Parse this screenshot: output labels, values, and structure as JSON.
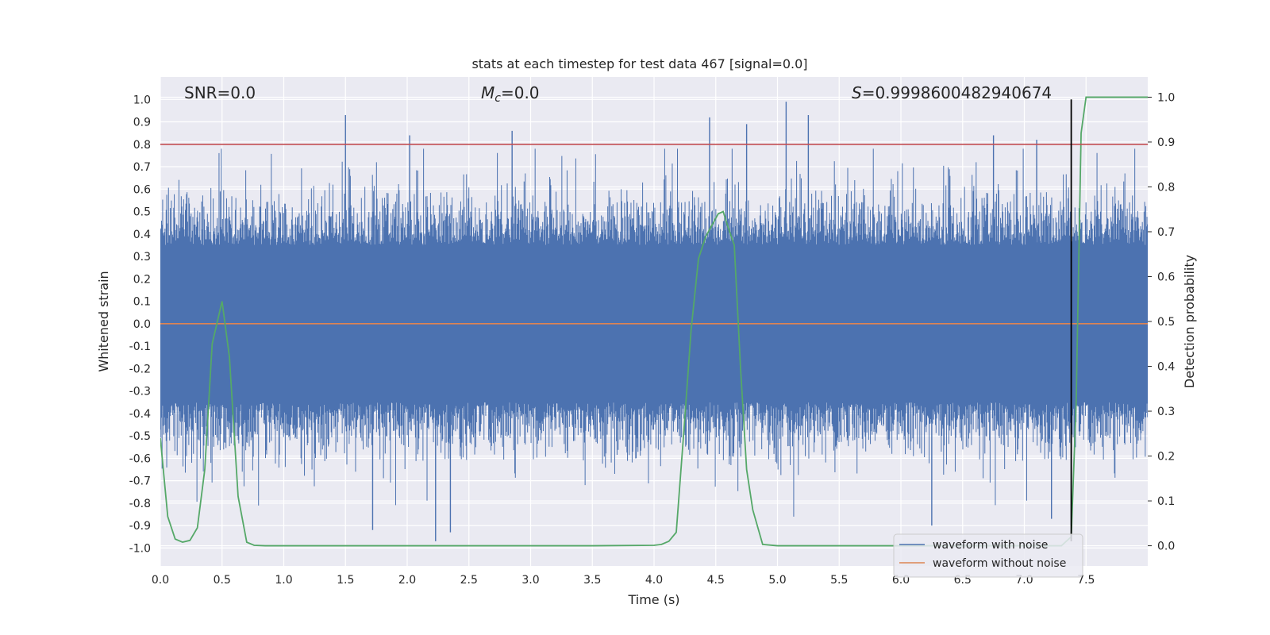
{
  "chart_data": {
    "type": "line",
    "title": "stats at each timestep for test data 467 [signal=0.0]",
    "xlabel": "Time (s)",
    "ylabel_left": "Whitened strain",
    "ylabel_right": "Detection probability",
    "xlim": [
      0.0,
      8.0
    ],
    "ylim_left": [
      -1.08,
      1.1
    ],
    "ylim_right": [
      -0.045,
      1.045
    ],
    "x_ticks": [
      "0.0",
      "0.5",
      "1.0",
      "1.5",
      "2.0",
      "2.5",
      "3.0",
      "3.5",
      "4.0",
      "4.5",
      "5.0",
      "5.5",
      "6.0",
      "6.5",
      "7.0",
      "7.5"
    ],
    "y_ticks_left": [
      "1.0",
      "0.9",
      "0.8",
      "0.7",
      "0.6",
      "0.5",
      "0.4",
      "0.3",
      "0.2",
      "0.1",
      "0.0",
      "-0.1",
      "-0.2",
      "-0.3",
      "-0.4",
      "-0.5",
      "-0.6",
      "-0.7",
      "-0.8",
      "-0.9",
      "-1.0"
    ],
    "y_ticks_right": [
      "1.0",
      "0.9",
      "0.8",
      "0.7",
      "0.6",
      "0.5",
      "0.4",
      "0.3",
      "0.2",
      "0.1",
      "0.0"
    ],
    "grid": true,
    "colors": {
      "background": "#eaeaf2",
      "noise": "#4c72b0",
      "clean": "#dd8452",
      "probability": "#55a868",
      "threshold": "#c44e52",
      "marker": "#000000"
    },
    "annotations": {
      "snr_label": "SNR=0.0",
      "mc_symbol": "M",
      "mc_sub": "c",
      "mc_value": "=0.0",
      "s_symbol": "S",
      "s_value": "=0.9998600482940674"
    },
    "threshold_left_y": 0.8,
    "marker_line": {
      "x": 7.38,
      "y_from": -0.97,
      "y_to": 1.0
    },
    "series": [
      {
        "name": "waveform with noise",
        "kind": "noisy-strain",
        "upper_envelope_typical": 0.45,
        "lower_envelope_typical": -0.45,
        "peaks": [
          {
            "x": 1.5,
            "y": 0.93
          },
          {
            "x": 2.02,
            "y": 0.84
          },
          {
            "x": 2.85,
            "y": 0.86
          },
          {
            "x": 4.45,
            "y": 0.92
          },
          {
            "x": 4.75,
            "y": 0.89
          },
          {
            "x": 5.07,
            "y": 0.99
          },
          {
            "x": 5.25,
            "y": 0.93
          },
          {
            "x": 6.75,
            "y": 0.84
          },
          {
            "x": 7.1,
            "y": 0.82
          },
          {
            "x": 2.23,
            "y": -0.97
          },
          {
            "x": 2.35,
            "y": -0.93
          },
          {
            "x": 1.72,
            "y": -0.92
          },
          {
            "x": 6.25,
            "y": -0.9
          },
          {
            "x": 7.22,
            "y": -0.87
          },
          {
            "x": 7.38,
            "y": -0.9
          }
        ]
      },
      {
        "name": "waveform without noise",
        "x": [
          0.0,
          8.0
        ],
        "y": [
          0.0,
          0.0
        ]
      },
      {
        "name": "detection probability",
        "axis": "right",
        "x": [
          0.0,
          0.06,
          0.12,
          0.18,
          0.24,
          0.3,
          0.36,
          0.42,
          0.5,
          0.56,
          0.63,
          0.7,
          0.76,
          0.85,
          1.0,
          2.0,
          3.0,
          3.5,
          4.0,
          4.06,
          4.12,
          4.18,
          4.24,
          4.3,
          4.36,
          4.42,
          4.48,
          4.52,
          4.56,
          4.6,
          4.65,
          4.7,
          4.75,
          4.8,
          4.88,
          5.0,
          6.0,
          7.0,
          7.3,
          7.38,
          7.42,
          7.46,
          7.5,
          7.6,
          8.0
        ],
        "y": [
          0.24,
          0.065,
          0.015,
          0.008,
          0.012,
          0.04,
          0.17,
          0.45,
          0.545,
          0.42,
          0.11,
          0.008,
          0.001,
          0.0,
          0.0,
          0.0,
          0.0,
          0.0,
          0.001,
          0.003,
          0.01,
          0.03,
          0.25,
          0.48,
          0.64,
          0.69,
          0.72,
          0.74,
          0.745,
          0.71,
          0.67,
          0.4,
          0.17,
          0.08,
          0.003,
          0.0,
          0.0,
          0.0,
          0.0,
          0.02,
          0.32,
          0.92,
          1.0,
          1.0,
          1.0
        ]
      }
    ],
    "legend": {
      "placement": "lower-right",
      "entries": [
        "waveform with noise",
        "waveform without noise"
      ]
    }
  }
}
